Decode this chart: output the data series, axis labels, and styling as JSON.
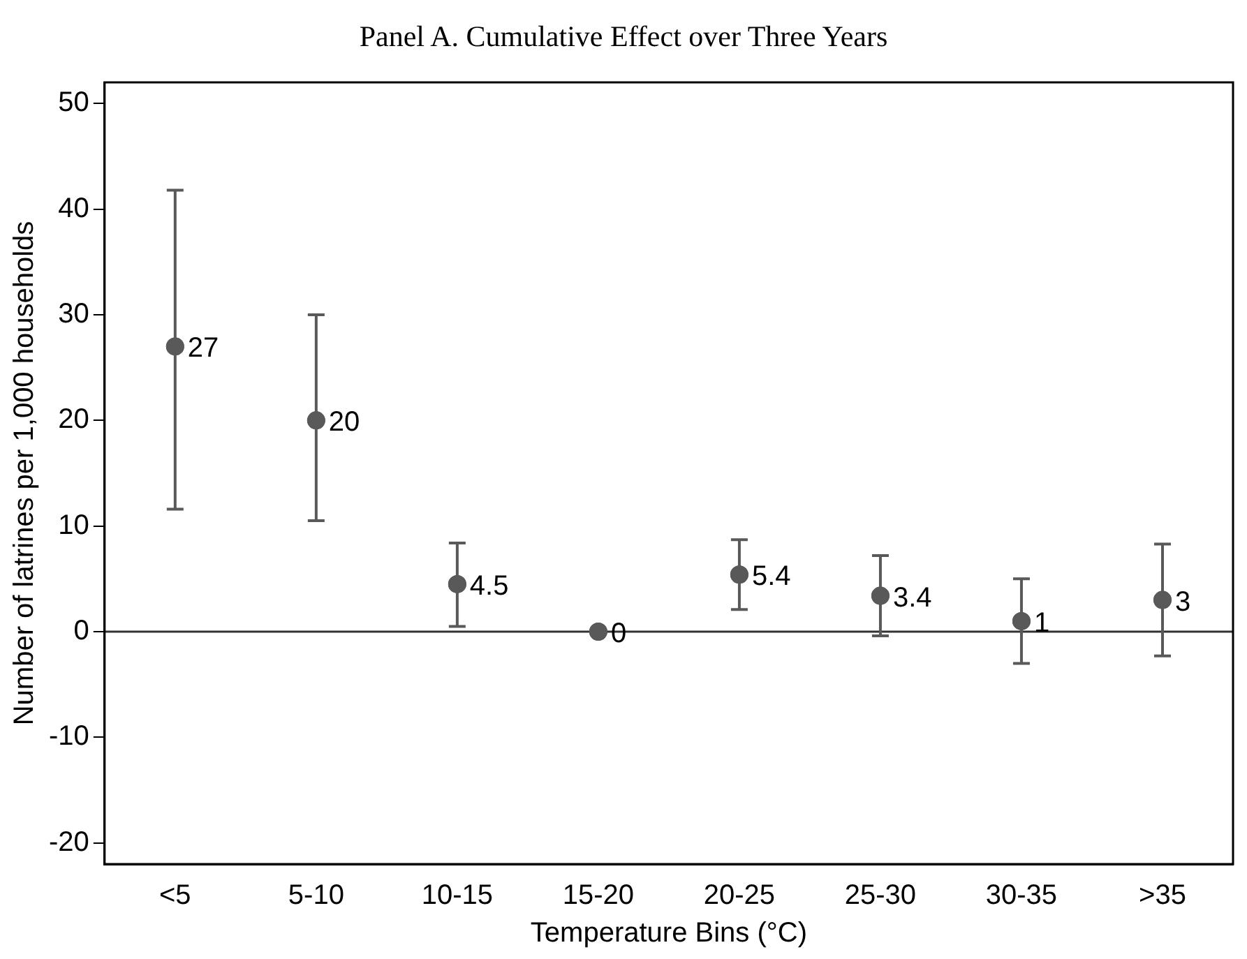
{
  "chart_data": {
    "type": "scatter",
    "title": "Panel A. Cumulative Effect over Three Years",
    "xlabel": "Temperature Bins (°C)",
    "ylabel": "Number of latrines per 1,000 households",
    "categories": [
      "<5",
      "5-10",
      "10-15",
      "15-20",
      "20-25",
      "25-30",
      "30-35",
      ">35"
    ],
    "values": [
      27,
      20,
      4.5,
      0,
      5.4,
      3.4,
      1,
      3
    ],
    "errors": [
      [
        11.6,
        41.8
      ],
      [
        10.5,
        30
      ],
      [
        0.5,
        8.4
      ],
      null,
      [
        2.1,
        8.7
      ],
      [
        -0.4,
        7.2
      ],
      [
        -3,
        5
      ],
      [
        -2.3,
        8.3
      ]
    ],
    "color": "#595959",
    "marker": "circle",
    "data_labels": true,
    "grid": false,
    "legend": false,
    "ylim": [
      -22,
      52
    ],
    "yticks": [
      -20,
      -10,
      0,
      10,
      20,
      30,
      40,
      50
    ],
    "ref_lines": [
      {
        "axis": "y",
        "value": 0,
        "color": "#333333"
      }
    ]
  }
}
